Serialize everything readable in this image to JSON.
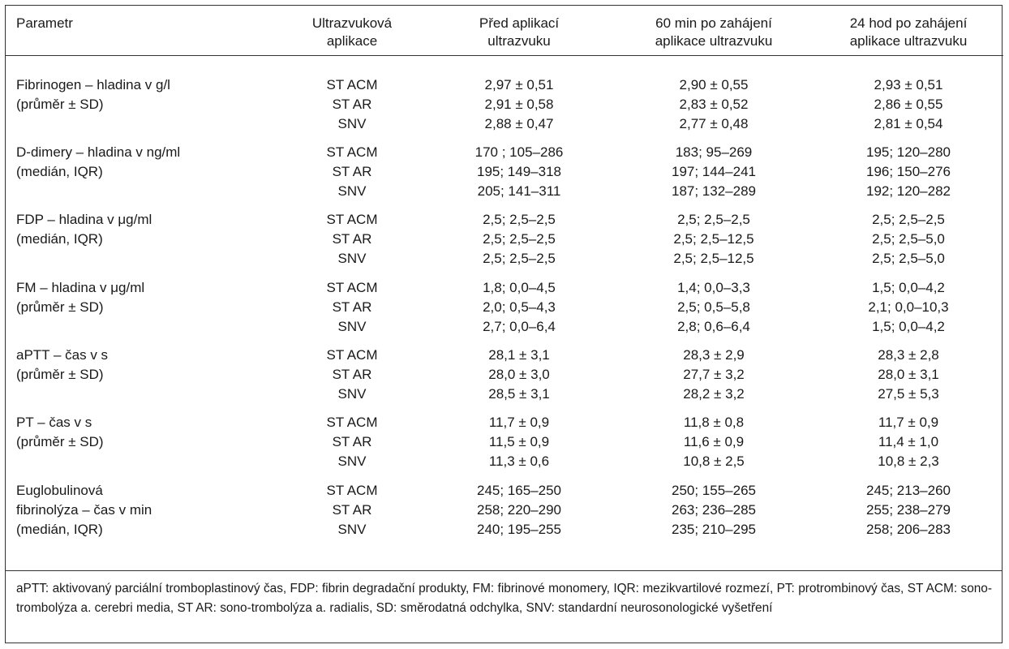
{
  "header": {
    "parametr": "Parametr",
    "aplikace_1": "Ultrazvuková",
    "aplikace_2": "aplikace",
    "pred_1": "Před aplikací",
    "pred_2": "ultrazvuku",
    "min60_1": "60 min po zahájení",
    "min60_2": "aplikace ultrazvuku",
    "hod24_1": "24 hod po zahájení",
    "hod24_2": "aplikace ultrazvuku"
  },
  "groups": [
    {
      "param": [
        "Fibrinogen – hladina v g/l",
        "(průměr ± SD)"
      ],
      "rows": [
        {
          "app": "ST ACM",
          "pred": "2,97 ± 0,51",
          "m60": "2,90 ± 0,55",
          "h24": "2,93 ± 0,51"
        },
        {
          "app": "ST AR",
          "pred": "2,91 ± 0,58",
          "m60": "2,83 ± 0,52",
          "h24": "2,86 ± 0,55"
        },
        {
          "app": "SNV",
          "pred": "2,88 ± 0,47",
          "m60": "2,77 ± 0,48",
          "h24": "2,81 ± 0,54"
        }
      ]
    },
    {
      "param": [
        "D-dimery – hladina v ng/ml",
        "(medián, IQR)"
      ],
      "rows": [
        {
          "app": "ST ACM",
          "pred": "170 ; 105–286",
          "m60": "183; 95–269",
          "h24": "195; 120–280"
        },
        {
          "app": "ST AR",
          "pred": "195; 149–318",
          "m60": "197; 144–241",
          "h24": "196; 150–276"
        },
        {
          "app": "SNV",
          "pred": "205; 141–311",
          "m60": "187; 132–289",
          "h24": "192; 120–282"
        }
      ]
    },
    {
      "param": [
        "FDP – hladina v μg/ml",
        "(medián, IQR)"
      ],
      "rows": [
        {
          "app": "ST ACM",
          "pred": "2,5; 2,5–2,5",
          "m60": "2,5; 2,5–2,5",
          "h24": "2,5; 2,5–2,5"
        },
        {
          "app": "ST AR",
          "pred": "2,5; 2,5–2,5",
          "m60": "2,5; 2,5–12,5",
          "h24": "2,5; 2,5–5,0"
        },
        {
          "app": "SNV",
          "pred": "2,5; 2,5–2,5",
          "m60": "2,5; 2,5–12,5",
          "h24": "2,5; 2,5–5,0"
        }
      ]
    },
    {
      "param": [
        "FM – hladina v μg/ml",
        "(průměr ± SD)"
      ],
      "rows": [
        {
          "app": "ST ACM",
          "pred": "1,8; 0,0–4,5",
          "m60": "1,4; 0,0–3,3",
          "h24": "1,5; 0,0–4,2"
        },
        {
          "app": "ST AR",
          "pred": "2,0; 0,5–4,3",
          "m60": "2,5; 0,5–5,8",
          "h24": "2,1; 0,0–10,3"
        },
        {
          "app": "SNV",
          "pred": "2,7; 0,0–6,4",
          "m60": "2,8; 0,6–6,4",
          "h24": "1,5; 0,0–4,2"
        }
      ]
    },
    {
      "param": [
        "aPTT – čas v s",
        "(průměr ± SD)"
      ],
      "rows": [
        {
          "app": "ST ACM",
          "pred": "28,1 ± 3,1",
          "m60": "28,3 ± 2,9",
          "h24": "28,3 ± 2,8"
        },
        {
          "app": "ST AR",
          "pred": "28,0 ± 3,0",
          "m60": "27,7 ± 3,2",
          "h24": "28,0 ± 3,1"
        },
        {
          "app": "SNV",
          "pred": "28,5 ± 3,1",
          "m60": "28,2 ± 3,2",
          "h24": "27,5 ± 5,3"
        }
      ]
    },
    {
      "param": [
        "PT – čas v s",
        "(průměr ± SD)"
      ],
      "rows": [
        {
          "app": "ST ACM",
          "pred": "11,7 ± 0,9",
          "m60": "11,8 ± 0,8",
          "h24": "11,7 ± 0,9"
        },
        {
          "app": "ST AR",
          "pred": "11,5 ± 0,9",
          "m60": "11,6 ± 0,9",
          "h24": "11,4 ± 1,0"
        },
        {
          "app": "SNV",
          "pred": "11,3 ± 0,6",
          "m60": "10,8 ± 2,5",
          "h24": "10,8 ± 2,3"
        }
      ]
    },
    {
      "param": [
        "Euglobulinová",
        "fibrinolýza – čas v min",
        "(medián, IQR)"
      ],
      "rows": [
        {
          "app": "ST ACM",
          "pred": "245; 165–250",
          "m60": "250; 155–265",
          "h24": "245; 213–260"
        },
        {
          "app": "ST AR",
          "pred": "258; 220–290",
          "m60": "263; 236–285",
          "h24": "255; 238–279"
        },
        {
          "app": "SNV",
          "pred": "240; 195–255",
          "m60": "235; 210–295",
          "h24": "258; 206–283"
        }
      ]
    }
  ],
  "footnote": "aPTT: aktivovaný parciální tromboplastinový čas, FDP: fibrin degradační produkty, FM: fibrinové monomery, IQR: mezikvartilové rozmezí, PT: protrombinový čas, ST ACM: sono-trombolýza a. cerebri media, ST AR: sono-trombolýza a. radialis, SD: směrodatná odchylka, SNV: standardní neurosonologické vyšetření"
}
